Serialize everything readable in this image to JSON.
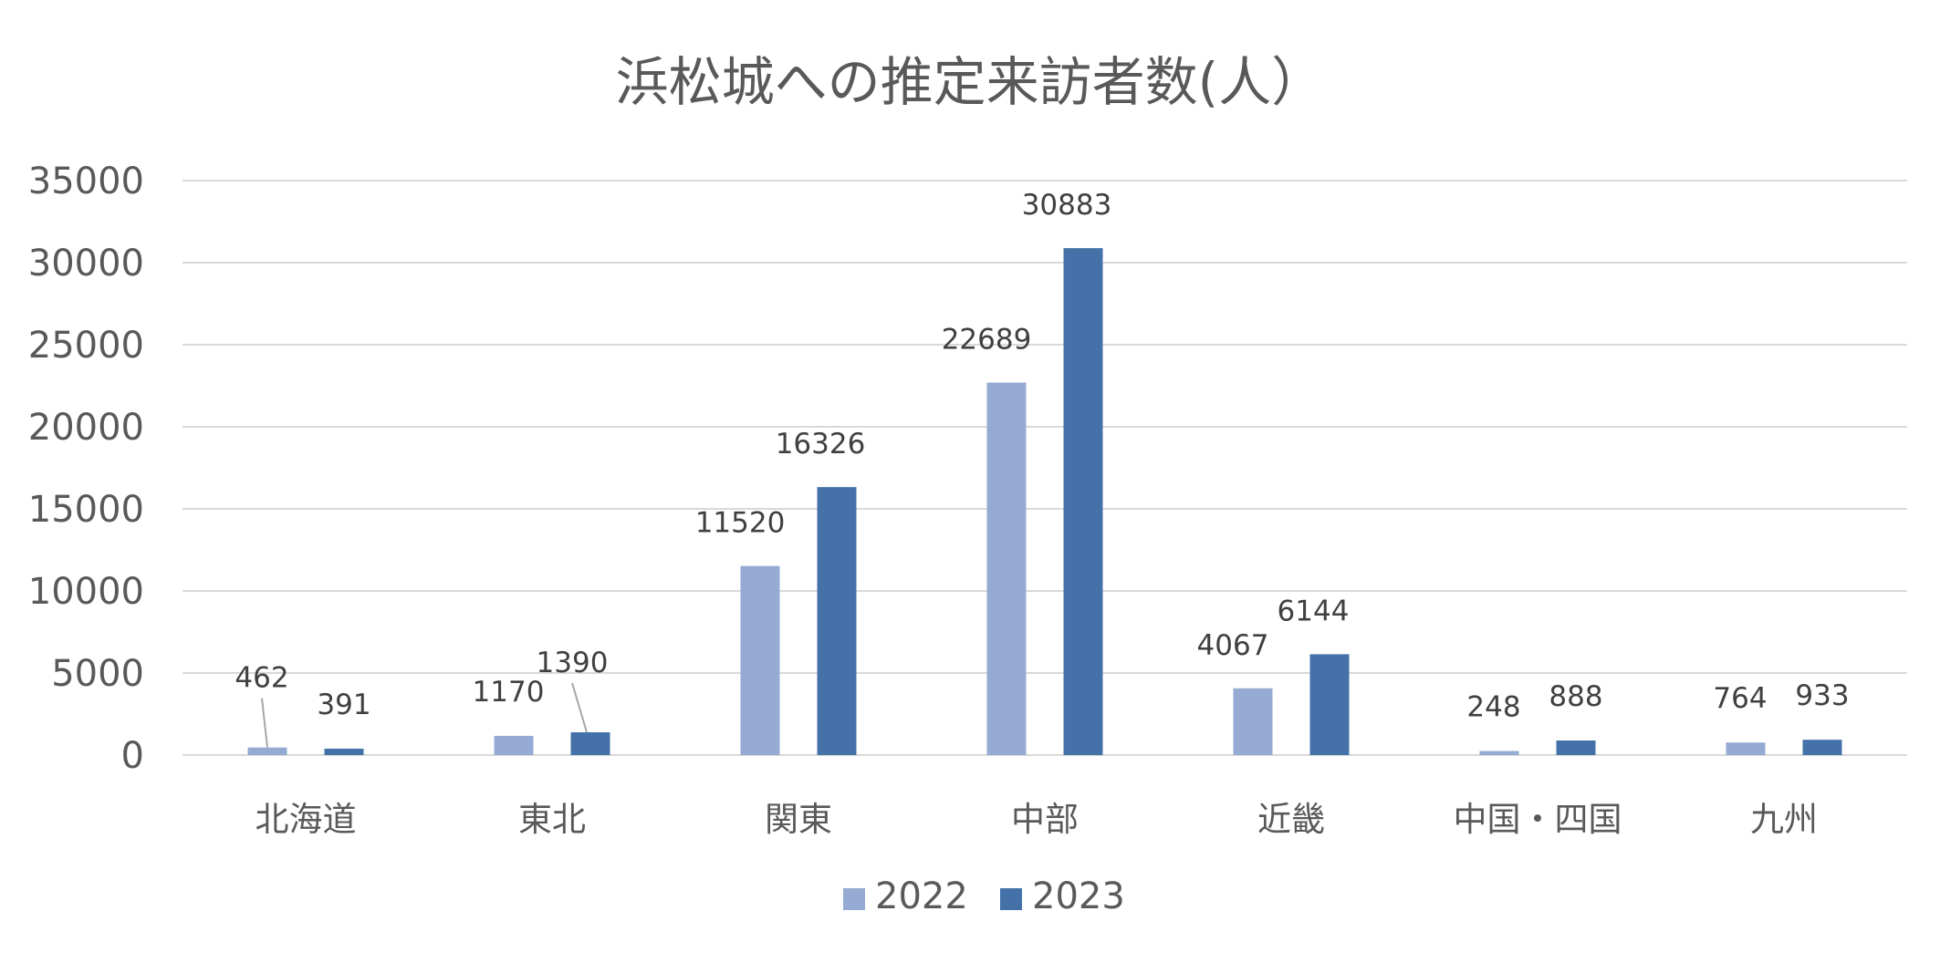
{
  "chart_data": {
    "type": "bar",
    "title": "浜松城への推定来訪者数(人）",
    "categories": [
      "北海道",
      "東北",
      "関東",
      "中部",
      "近畿",
      "中国・四国",
      "九州"
    ],
    "series": [
      {
        "name": "2022",
        "color": "#95abd3",
        "values": [
          462,
          1170,
          11520,
          22689,
          4067,
          248,
          764
        ]
      },
      {
        "name": "2023",
        "color": "#4472a8",
        "values": [
          391,
          1390,
          16326,
          30883,
          6144,
          888,
          933
        ]
      }
    ],
    "ylim": [
      0,
      35000
    ],
    "yticks": [
      0,
      5000,
      10000,
      15000,
      20000,
      25000,
      30000,
      35000
    ],
    "grid": true,
    "legend_position": "bottom",
    "data_labels": true
  }
}
